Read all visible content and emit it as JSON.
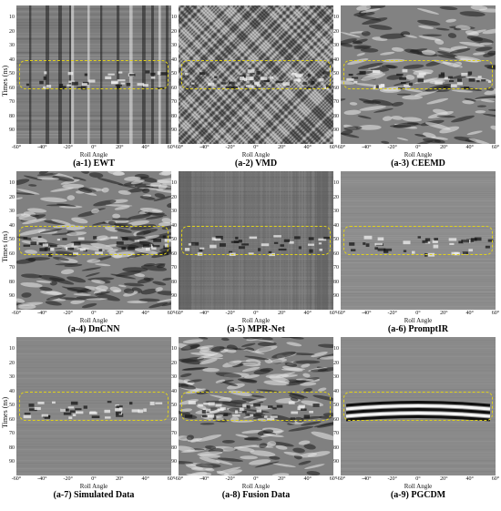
{
  "axes": {
    "ylabel": "Times (ns)",
    "xlabel": "Roll Angle",
    "yticks": [
      "10",
      "20",
      "30",
      "40",
      "50",
      "60",
      "70",
      "80",
      "90"
    ],
    "xticks": [
      "-60°",
      "-40°",
      "-20°",
      "0°",
      "20°",
      "40°",
      "60°"
    ]
  },
  "highlight_color": "#e0d21a",
  "panels": [
    {
      "caption": "(a-1) EWT",
      "style": "ewt"
    },
    {
      "caption": "(a-2) VMD",
      "style": "vmd"
    },
    {
      "caption": "(a-3) CEEMD",
      "style": "ceemd"
    },
    {
      "caption": "(a-4) DnCNN",
      "style": "dncnn"
    },
    {
      "caption": "(a-5) MPR-Net",
      "style": "mprnet"
    },
    {
      "caption": "(a-6) PromptIR",
      "style": "promptir"
    },
    {
      "caption": "(a-7) Simulated Data",
      "style": "sim"
    },
    {
      "caption": "(a-8) Fusion Data",
      "style": "fusion"
    },
    {
      "caption": "(a-9) PGCDM",
      "style": "pgcdm"
    }
  ]
}
